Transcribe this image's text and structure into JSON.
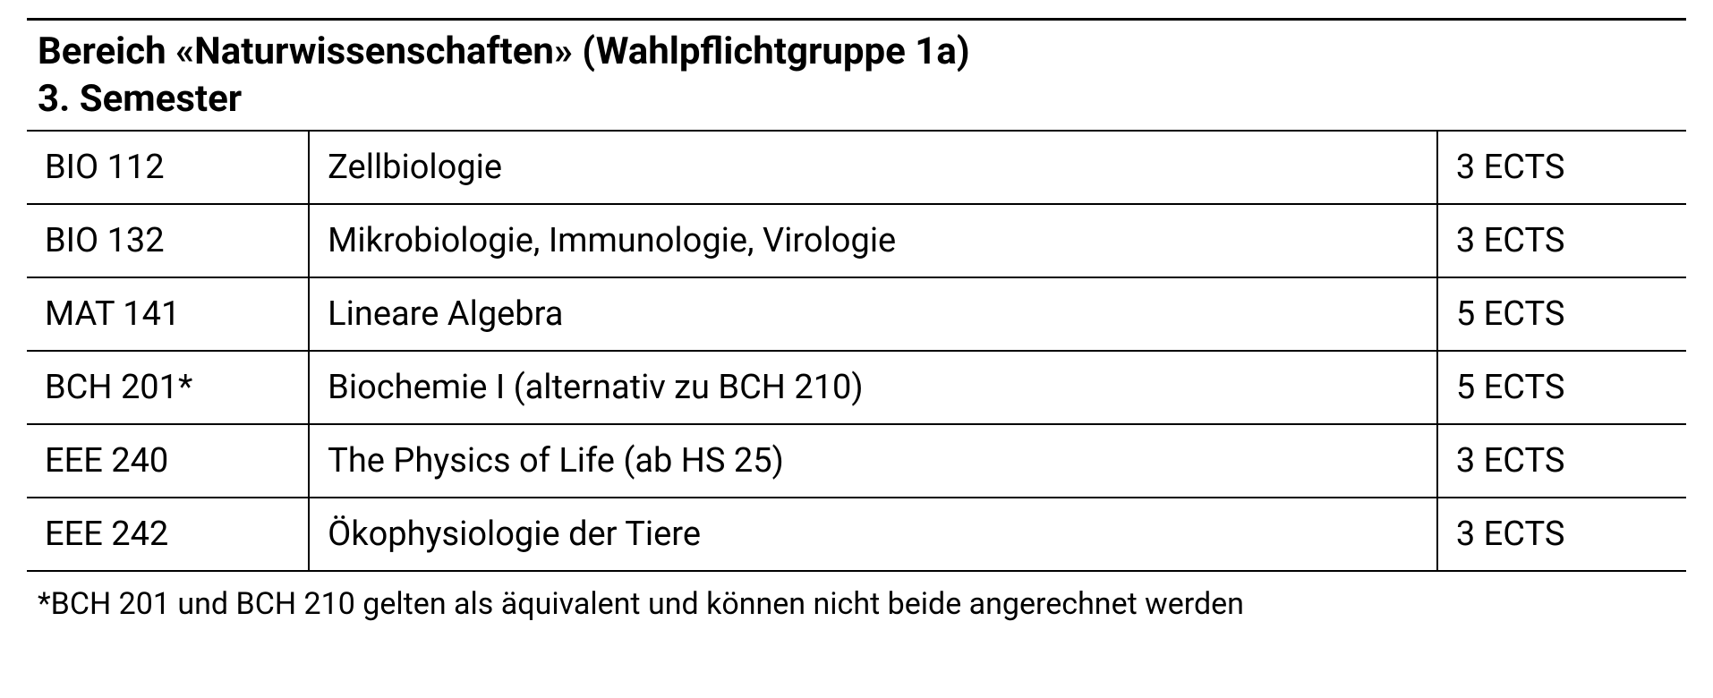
{
  "section": {
    "title": "Bereich «Naturwissenschaften» (Wahlpflichtgruppe 1a)",
    "subtitle": "3. Semester"
  },
  "columns": {
    "code_width": "17%",
    "name_width": "68%",
    "ects_width": "15%"
  },
  "courses": [
    {
      "code": "BIO 112",
      "name": "Zellbiologie",
      "ects": "3 ECTS"
    },
    {
      "code": "BIO 132",
      "name": "Mikrobiologie, Immunologie, Virologie",
      "ects": "3 ECTS"
    },
    {
      "code": "MAT 141",
      "name": "Lineare Algebra",
      "ects": "5 ECTS"
    },
    {
      "code": "BCH 201*",
      "name": "Biochemie I (alternativ zu BCH 210)",
      "ects": "5 ECTS"
    },
    {
      "code": "EEE 240",
      "name": "The Physics of Life (ab HS 25)",
      "ects": "3 ECTS"
    },
    {
      "code": "EEE 242",
      "name": "Ökophysiologie der Tiere",
      "ects": "3 ECTS"
    }
  ],
  "footnote": "*BCH 201 und BCH 210 gelten als äquivalent und können nicht beide angerechnet werden",
  "styling": {
    "background_color": "#ffffff",
    "text_color": "#000000",
    "border_color": "#000000",
    "title_fontsize": 42,
    "title_weight": 700,
    "body_fontsize": 38,
    "footnote_fontsize": 34,
    "top_border_width": 3,
    "row_border_width": 2
  }
}
